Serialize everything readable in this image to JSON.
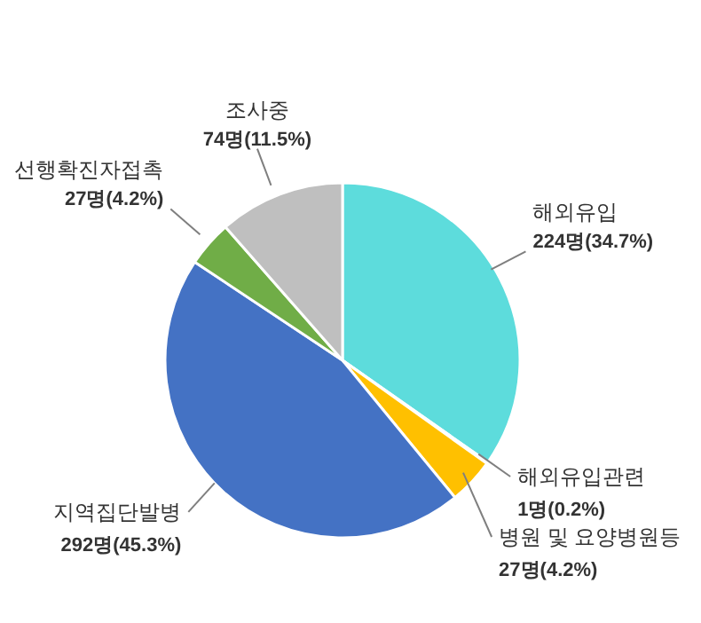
{
  "chart_data": {
    "type": "pie",
    "categories": [
      "해외유입",
      "해외유입관련",
      "병원 및 요양병원등",
      "지역집단발병",
      "선행확진자접촉",
      "조사중"
    ],
    "values": [
      224,
      1,
      27,
      292,
      27,
      74
    ],
    "colors": [
      "#5ddcdc",
      "#f0b800",
      "#ffc000",
      "#4472c4",
      "#70ad47",
      "#bfbfbf"
    ],
    "value_labels": [
      "224명(34.7%)",
      "1명(0.2%)",
      "27명(4.2%)",
      "292명(45.3%)",
      "27명(4.2%)",
      "74명(11.5%)"
    ]
  }
}
